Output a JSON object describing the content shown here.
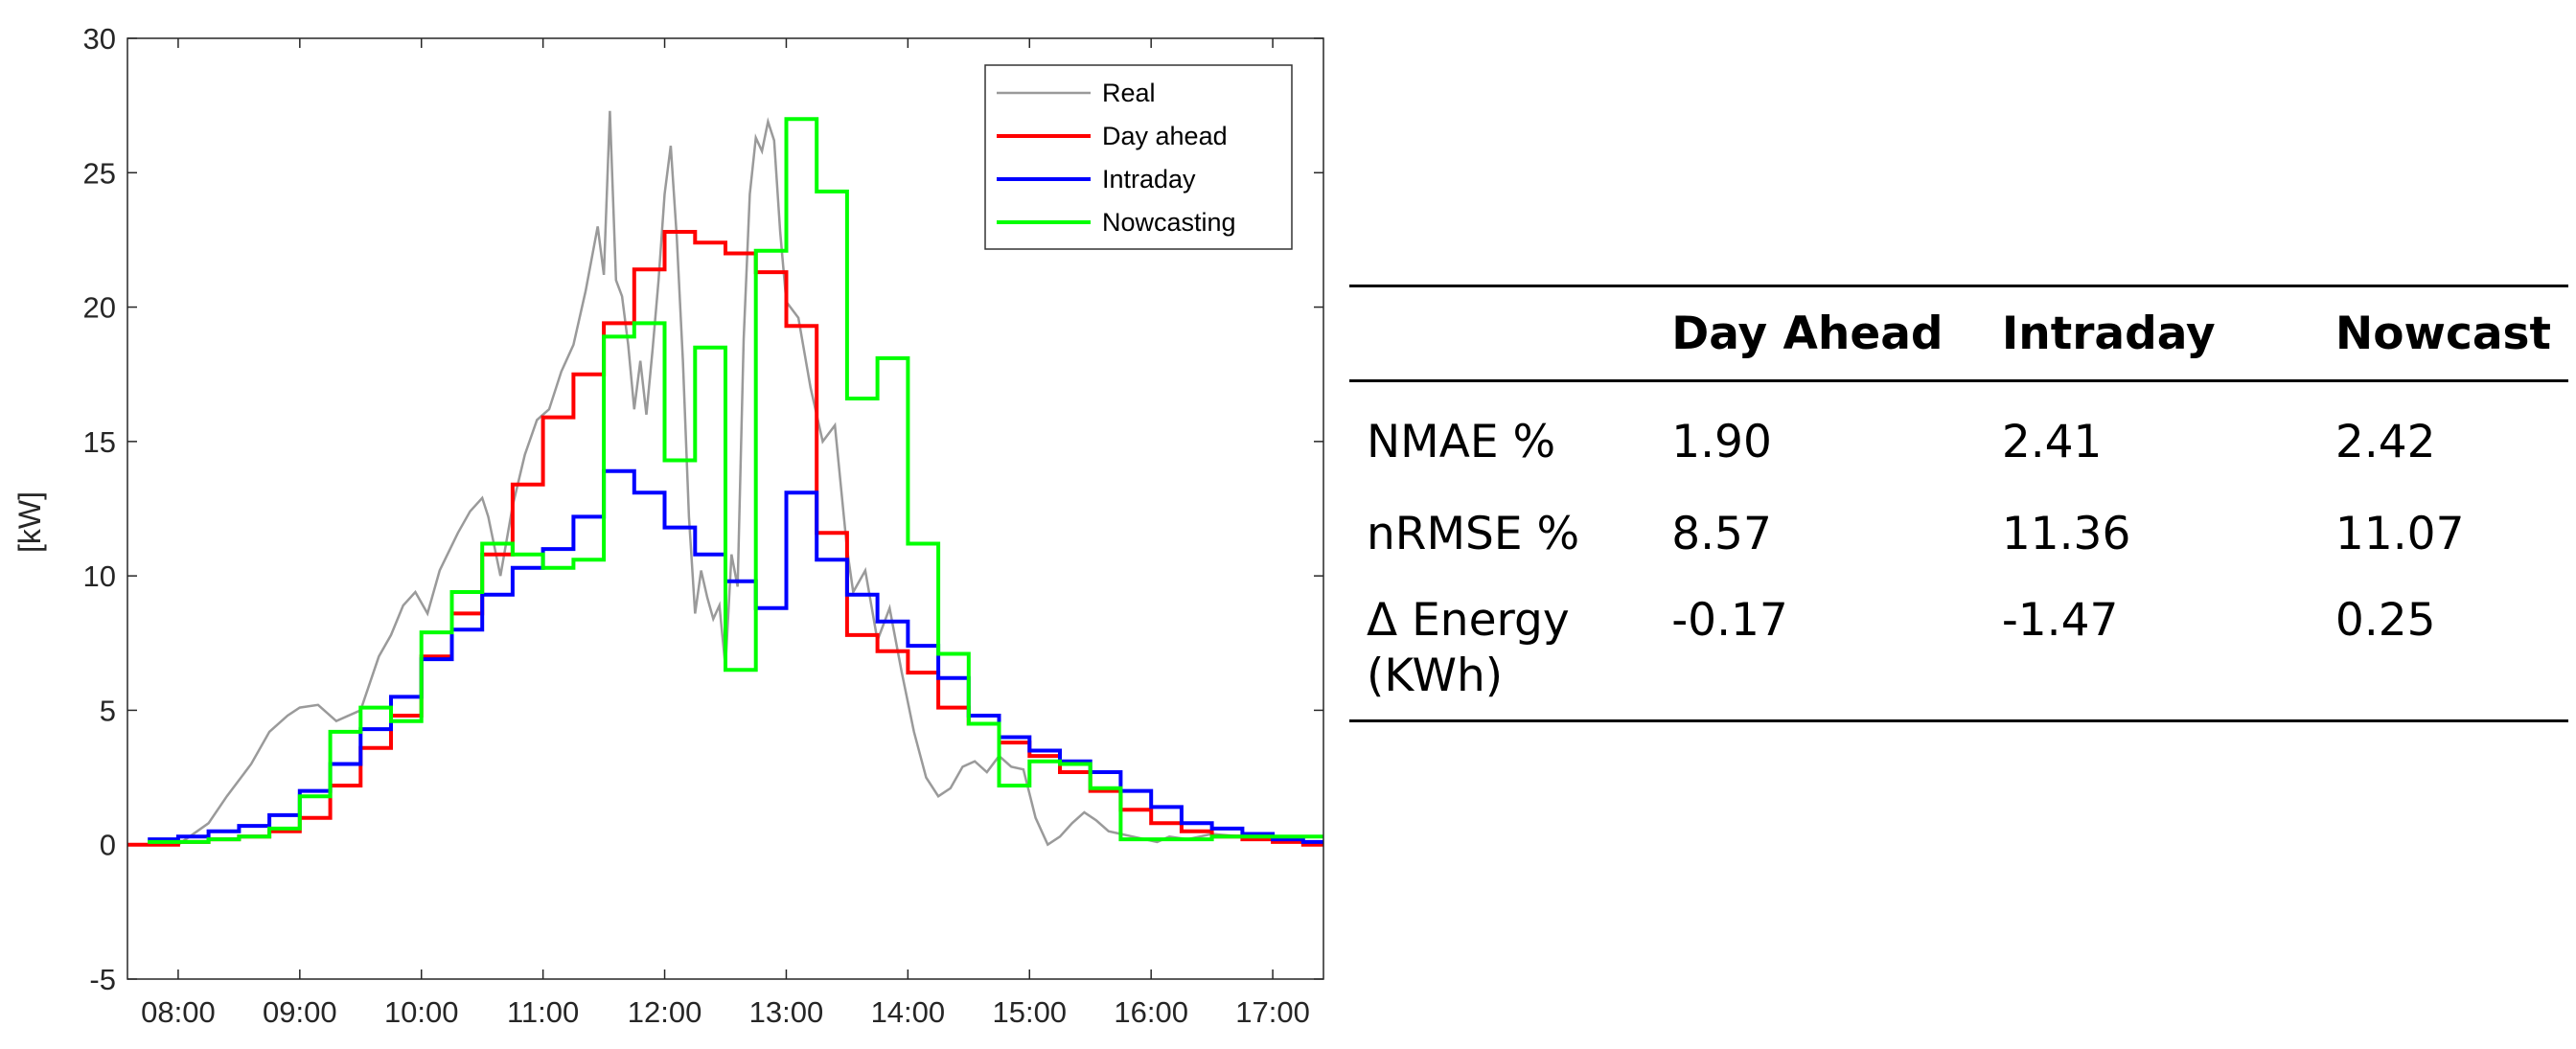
{
  "chart_data": {
    "type": "line",
    "title": "",
    "xlabel": "",
    "ylabel": "[kW]",
    "xlim": [
      7.583,
      17.417
    ],
    "ylim": [
      -5,
      30
    ],
    "yticks": [
      -5,
      0,
      5,
      10,
      15,
      20,
      25,
      30
    ],
    "xticks": [
      8,
      9,
      10,
      11,
      12,
      13,
      14,
      15,
      16,
      17
    ],
    "xtick_labels": [
      "08:00",
      "09:00",
      "10:00",
      "11:00",
      "12:00",
      "13:00",
      "14:00",
      "15:00",
      "16:00",
      "17:00"
    ],
    "legend_position": "top-right",
    "series": [
      {
        "name": "Real",
        "color": "#9a9a9a",
        "step": false,
        "x": [
          7.75,
          8.0,
          8.25,
          8.4,
          8.6,
          8.75,
          8.9,
          9.0,
          9.15,
          9.3,
          9.5,
          9.65,
          9.75,
          9.85,
          9.95,
          10.05,
          10.15,
          10.3,
          10.4,
          10.5,
          10.55,
          10.65,
          10.75,
          10.85,
          10.95,
          11.05,
          11.15,
          11.25,
          11.35,
          11.45,
          11.5,
          11.55,
          11.6,
          11.65,
          11.7,
          11.75,
          11.8,
          11.85,
          11.9,
          11.95,
          12.0,
          12.05,
          12.1,
          12.15,
          12.2,
          12.25,
          12.3,
          12.35,
          12.4,
          12.45,
          12.5,
          12.55,
          12.6,
          12.65,
          12.7,
          12.75,
          12.8,
          12.85,
          12.9,
          12.95,
          13.0,
          13.1,
          13.2,
          13.3,
          13.4,
          13.5,
          13.55,
          13.65,
          13.75,
          13.85,
          13.95,
          14.05,
          14.15,
          14.25,
          14.35,
          14.45,
          14.55,
          14.65,
          14.75,
          14.85,
          14.95,
          15.05,
          15.15,
          15.25,
          15.35,
          15.45,
          15.55,
          15.65,
          15.75,
          15.85,
          15.95,
          16.05,
          16.15,
          16.3,
          16.5,
          16.75,
          17.0,
          17.2,
          17.35
        ],
        "values": [
          0.1,
          0.0,
          0.8,
          1.8,
          3.0,
          4.2,
          4.8,
          5.1,
          5.2,
          4.6,
          5.0,
          7.0,
          7.8,
          8.9,
          9.4,
          8.6,
          10.2,
          11.6,
          12.4,
          12.9,
          12.2,
          10.0,
          12.6,
          14.5,
          15.8,
          16.2,
          17.6,
          18.6,
          20.6,
          23.0,
          21.2,
          27.3,
          21.0,
          20.4,
          18.6,
          16.2,
          18.0,
          16.0,
          18.4,
          21.0,
          24.2,
          26.0,
          22.6,
          18.0,
          12.2,
          8.6,
          10.2,
          9.2,
          8.4,
          8.9,
          6.6,
          10.8,
          9.6,
          18.8,
          24.2,
          26.3,
          25.8,
          26.9,
          26.2,
          22.8,
          20.2,
          19.6,
          17.0,
          15.0,
          15.6,
          11.0,
          9.4,
          10.2,
          7.6,
          8.8,
          6.4,
          4.2,
          2.5,
          1.8,
          2.1,
          2.9,
          3.1,
          2.7,
          3.3,
          2.9,
          2.8,
          1.0,
          0.0,
          0.3,
          0.8,
          1.2,
          0.9,
          0.5,
          0.4,
          0.3,
          0.2,
          0.1,
          0.3,
          0.2,
          0.4,
          0.3,
          0.2,
          0.1,
          0.1
        ]
      },
      {
        "name": "Day ahead",
        "color": "#ff0000",
        "step": true,
        "x": [
          7.5,
          7.75,
          8.0,
          8.25,
          8.5,
          8.75,
          9.0,
          9.25,
          9.5,
          9.75,
          10.0,
          10.25,
          10.5,
          10.75,
          11.0,
          11.25,
          11.5,
          11.75,
          12.0,
          12.25,
          12.5,
          12.75,
          13.0,
          13.25,
          13.5,
          13.75,
          14.0,
          14.25,
          14.5,
          14.75,
          15.0,
          15.25,
          15.5,
          15.75,
          16.0,
          16.25,
          16.5,
          16.75,
          17.0,
          17.25,
          17.5
        ],
        "values": [
          0.0,
          0.0,
          0.1,
          0.2,
          0.3,
          0.5,
          1.0,
          2.2,
          3.6,
          4.8,
          7.0,
          8.6,
          10.8,
          13.4,
          15.9,
          17.5,
          19.4,
          21.4,
          22.8,
          22.4,
          22.0,
          21.3,
          19.3,
          11.6,
          7.8,
          7.2,
          6.4,
          5.1,
          4.5,
          3.8,
          3.3,
          2.7,
          2.0,
          1.3,
          0.8,
          0.5,
          0.3,
          0.2,
          0.1,
          0.0,
          0.0
        ]
      },
      {
        "name": "Intraday",
        "color": "#0000ff",
        "step": true,
        "x": [
          7.75,
          8.0,
          8.25,
          8.5,
          8.75,
          9.0,
          9.25,
          9.5,
          9.75,
          10.0,
          10.25,
          10.5,
          10.75,
          11.0,
          11.25,
          11.5,
          11.75,
          12.0,
          12.25,
          12.5,
          12.75,
          13.0,
          13.25,
          13.5,
          13.75,
          14.0,
          14.25,
          14.5,
          14.75,
          15.0,
          15.25,
          15.5,
          15.75,
          16.0,
          16.25,
          16.5,
          16.75,
          17.0,
          17.25
        ],
        "values": [
          0.2,
          0.3,
          0.5,
          0.7,
          1.1,
          2.0,
          3.0,
          4.3,
          5.5,
          6.9,
          8.0,
          9.3,
          10.3,
          11.0,
          12.2,
          13.9,
          13.1,
          11.8,
          10.8,
          9.8,
          8.8,
          13.1,
          10.6,
          9.3,
          8.3,
          7.4,
          6.2,
          4.8,
          4.0,
          3.5,
          3.1,
          2.7,
          2.0,
          1.4,
          0.8,
          0.6,
          0.4,
          0.2,
          0.1
        ]
      },
      {
        "name": "Nowcasting",
        "color": "#00ff00",
        "step": true,
        "x": [
          7.75,
          8.0,
          8.25,
          8.5,
          8.75,
          9.0,
          9.25,
          9.5,
          9.75,
          10.0,
          10.25,
          10.5,
          10.75,
          11.0,
          11.25,
          11.5,
          11.75,
          12.0,
          12.25,
          12.5,
          12.75,
          13.0,
          13.25,
          13.5,
          13.75,
          14.0,
          14.25,
          14.5,
          14.75,
          15.0,
          15.25,
          15.5,
          15.75,
          16.0,
          16.25,
          16.5,
          16.75,
          17.0,
          17.25
        ],
        "values": [
          0.1,
          0.1,
          0.2,
          0.3,
          0.6,
          1.8,
          4.2,
          5.1,
          4.6,
          7.9,
          9.4,
          11.2,
          10.8,
          10.3,
          10.6,
          18.9,
          19.4,
          14.3,
          18.5,
          6.5,
          22.1,
          27.0,
          24.3,
          16.6,
          18.1,
          11.2,
          7.1,
          4.5,
          2.2,
          3.1,
          3.0,
          2.1,
          0.2,
          0.2,
          0.2,
          0.3,
          0.3,
          0.3,
          0.3
        ]
      }
    ]
  },
  "metrics_table": {
    "headers": [
      "",
      "Day Ahead",
      "Intraday",
      "Nowcast"
    ],
    "rows": [
      {
        "label": "NMAE %",
        "day_ahead": "1.90",
        "intraday": "2.41",
        "nowcast": "2.42"
      },
      {
        "label": "nRMSE %",
        "day_ahead": "8.57",
        "intraday": "11.36",
        "nowcast": "11.07"
      },
      {
        "label_line1": "Δ Energy",
        "label_line2": "(KWh)",
        "day_ahead": "-0.17",
        "intraday": "-1.47",
        "nowcast": "0.25"
      }
    ]
  }
}
